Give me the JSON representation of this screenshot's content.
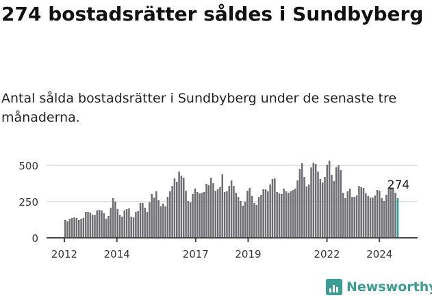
{
  "header": {
    "title": "274 bostadsrätter såldes i Sundbyberg",
    "subtitle": "Antal sålda bostadsrätter i Sundbyberg under de senaste tre månaderna."
  },
  "brand": {
    "name": "Newsworthy",
    "color": "#3a9e93"
  },
  "chart_data": {
    "type": "bar",
    "title": "274 bostadsrätter såldes i Sundbyberg",
    "xlabel": "",
    "ylabel": "",
    "ylim": [
      0,
      540
    ],
    "xlim": [
      2012.0,
      2024.75
    ],
    "yticks": [
      0,
      250,
      500
    ],
    "ytick_labels": [
      "0",
      "250",
      "500"
    ],
    "xticks": [
      2012,
      2014,
      2017,
      2019,
      2022,
      2024
    ],
    "xtick_labels": [
      "2012",
      "2014",
      "2017",
      "2019",
      "2022",
      "2024"
    ],
    "grid": true,
    "bar_color": "#6e6d72",
    "highlight_color": "#1fa39a",
    "last_label": "274",
    "values": [
      123,
      113,
      132,
      137,
      141,
      137,
      123,
      132,
      137,
      179,
      179,
      174,
      160,
      156,
      189,
      193,
      189,
      170,
      132,
      151,
      208,
      274,
      250,
      198,
      156,
      146,
      189,
      198,
      203,
      146,
      141,
      179,
      184,
      240,
      240,
      208,
      179,
      245,
      302,
      278,
      321,
      259,
      217,
      236,
      217,
      283,
      321,
      358,
      410,
      387,
      457,
      429,
      415,
      325,
      255,
      245,
      302,
      340,
      316,
      307,
      311,
      316,
      373,
      363,
      415,
      377,
      325,
      335,
      349,
      439,
      316,
      321,
      358,
      396,
      358,
      311,
      283,
      255,
      222,
      250,
      325,
      344,
      288,
      240,
      226,
      283,
      297,
      335,
      335,
      321,
      368,
      406,
      410,
      316,
      307,
      302,
      340,
      321,
      311,
      321,
      330,
      340,
      396,
      476,
      514,
      420,
      354,
      368,
      486,
      519,
      509,
      457,
      406,
      382,
      420,
      505,
      533,
      434,
      391,
      486,
      500,
      467,
      311,
      274,
      321,
      340,
      283,
      283,
      292,
      358,
      349,
      344,
      307,
      288,
      278,
      278,
      292,
      330,
      325,
      274,
      255,
      297,
      340,
      340,
      340,
      311,
      274
    ]
  }
}
